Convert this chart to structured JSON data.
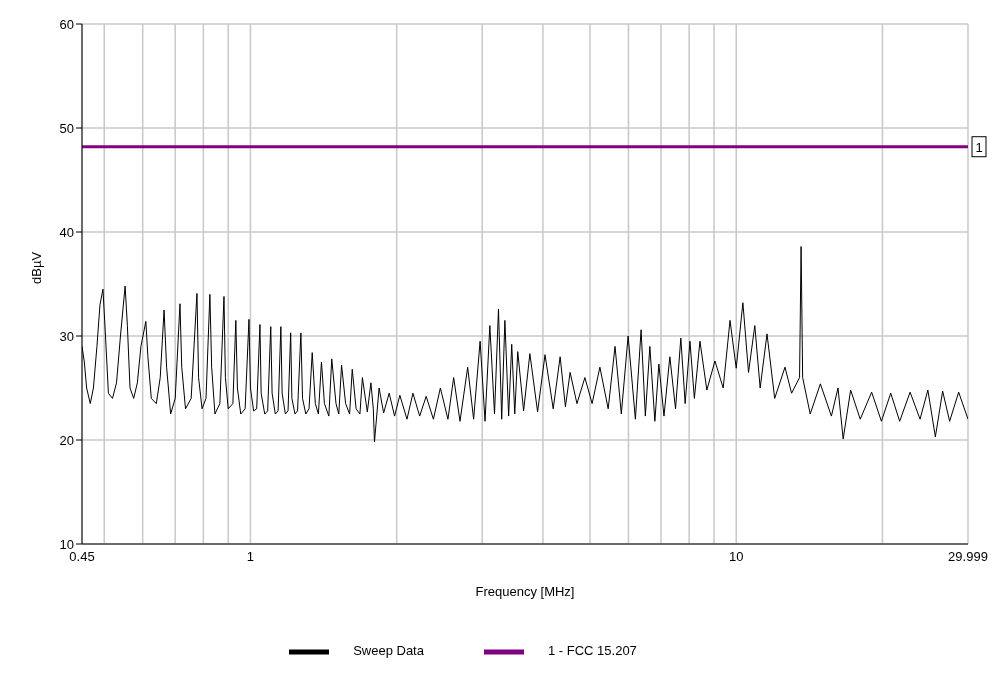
{
  "chart_data": {
    "type": "line",
    "xlabel": "Frequency [MHz]",
    "ylabel": "dBµV",
    "log": "x",
    "grid": true,
    "legend": "bottom",
    "marker": "none",
    "line_style": "solid",
    "xlim": [
      0.45,
      29.999
    ],
    "ylim": [
      10,
      60
    ],
    "xticks": [
      0.45,
      {
        "value": 0.5,
        "label": null
      },
      {
        "value": 0.6,
        "label": null
      },
      {
        "value": 0.7,
        "label": null
      },
      {
        "value": 0.8,
        "label": null
      },
      {
        "value": 0.9,
        "label": null
      },
      1,
      {
        "value": 2,
        "label": null
      },
      {
        "value": 3,
        "label": null
      },
      {
        "value": 4,
        "label": null
      },
      {
        "value": 5,
        "label": null
      },
      {
        "value": 6,
        "label": null
      },
      {
        "value": 7,
        "label": null
      },
      {
        "value": 8,
        "label": null
      },
      {
        "value": 9,
        "label": null
      },
      10,
      {
        "value": 20,
        "label": null
      },
      29.999
    ],
    "yticks": [
      10,
      20,
      30,
      40,
      50,
      60
    ],
    "series": [
      {
        "name": "Sweep Data",
        "color": "#000000",
        "x": [
          0.45,
          0.455,
          0.46,
          0.468,
          0.475,
          0.483,
          0.49,
          0.497,
          0.503,
          0.51,
          0.52,
          0.53,
          0.54,
          0.552,
          0.558,
          0.565,
          0.575,
          0.585,
          0.595,
          0.609,
          0.615,
          0.625,
          0.64,
          0.652,
          0.664,
          0.672,
          0.685,
          0.7,
          0.716,
          0.722,
          0.735,
          0.755,
          0.776,
          0.782,
          0.795,
          0.81,
          0.825,
          0.832,
          0.845,
          0.865,
          0.882,
          0.888,
          0.9,
          0.92,
          0.933,
          0.94,
          0.955,
          0.975,
          0.993,
          1.0,
          1.015,
          1.03,
          1.046,
          1.052,
          1.07,
          1.085,
          1.101,
          1.108,
          1.125,
          1.14,
          1.155,
          1.162,
          1.18,
          1.195,
          1.21,
          1.217,
          1.235,
          1.25,
          1.27,
          1.28,
          1.3,
          1.32,
          1.34,
          1.36,
          1.38,
          1.4,
          1.42,
          1.45,
          1.47,
          1.5,
          1.52,
          1.54,
          1.57,
          1.6,
          1.62,
          1.65,
          1.68,
          1.7,
          1.74,
          1.77,
          1.79,
          1.8,
          1.84,
          1.88,
          1.93,
          1.98,
          2.03,
          2.1,
          2.16,
          2.23,
          2.3,
          2.38,
          2.46,
          2.55,
          2.62,
          2.7,
          2.8,
          2.88,
          2.97,
          3.04,
          3.11,
          3.18,
          3.24,
          3.29,
          3.34,
          3.4,
          3.45,
          3.5,
          3.55,
          3.65,
          3.76,
          3.9,
          4.04,
          4.2,
          4.34,
          4.45,
          4.55,
          4.7,
          4.88,
          5.05,
          5.24,
          5.45,
          5.63,
          5.8,
          5.99,
          6.2,
          6.37,
          6.5,
          6.64,
          6.8,
          6.93,
          7.1,
          7.3,
          7.5,
          7.69,
          7.85,
          8.03,
          8.2,
          8.42,
          8.7,
          9.04,
          9.4,
          9.71,
          10.0,
          10.32,
          10.6,
          10.92,
          11.2,
          11.57,
          12.0,
          12.6,
          13.0,
          13.5,
          13.6,
          13.7,
          14.2,
          14.9,
          15.7,
          16.2,
          16.6,
          17.2,
          18.0,
          19.0,
          19.9,
          20.8,
          21.7,
          22.8,
          23.9,
          24.8,
          25.7,
          26.6,
          27.5,
          28.7,
          29.999
        ],
        "values": [
          29,
          27.5,
          25,
          23.5,
          25,
          29,
          33,
          34.5,
          30,
          24.5,
          24,
          25.5,
          30,
          34.8,
          31,
          25,
          24,
          25.5,
          29,
          31.4,
          28,
          24,
          23.5,
          26,
          32.5,
          27,
          22.5,
          24,
          33.1,
          27,
          23,
          24,
          34.1,
          26,
          23,
          24,
          34,
          27,
          22.5,
          23.5,
          33.8,
          26,
          23,
          23.5,
          31.5,
          25,
          22.5,
          23,
          31.6,
          25,
          22.8,
          23,
          31.1,
          24.5,
          22.5,
          22.8,
          30.9,
          24.5,
          22.5,
          22.8,
          30.9,
          24.5,
          22.5,
          22.8,
          30.3,
          24,
          22.5,
          22.8,
          30.3,
          24,
          22.5,
          23,
          28.4,
          23.5,
          22.5,
          27.5,
          23.5,
          22.3,
          27.8,
          23.5,
          22.5,
          27.2,
          23.5,
          22.5,
          26.8,
          23,
          22.5,
          26,
          22.7,
          25.5,
          23,
          19.8,
          25,
          22.6,
          24.5,
          22.3,
          24.3,
          22,
          24.5,
          22.3,
          24.2,
          22,
          25,
          22,
          26,
          21.8,
          27,
          22,
          29.5,
          21.8,
          31,
          22.5,
          32.6,
          22,
          31.5,
          22.3,
          29.2,
          22.5,
          28.5,
          22.8,
          28.3,
          22.7,
          28.2,
          23,
          28,
          23.2,
          26.5,
          23.5,
          26,
          23.5,
          27,
          23,
          29,
          22.5,
          30,
          22,
          30.6,
          22.3,
          29,
          21.8,
          27.3,
          22.3,
          28,
          23,
          29.8,
          23.5,
          29.5,
          24,
          29.5,
          24.8,
          27.6,
          25,
          31.5,
          26.9,
          33.2,
          26.5,
          31,
          25,
          30.2,
          24,
          27,
          24.5,
          26,
          38.6,
          26,
          22.5,
          25.4,
          22.3,
          25,
          20.1,
          24.8,
          22,
          24.6,
          21.8,
          24.5,
          21.8,
          24.6,
          22,
          24.8,
          20.3,
          24.7,
          21.8,
          24.6,
          22
        ]
      },
      {
        "name": "1 - FCC 15.207",
        "color": "#800080",
        "x": [
          0.45,
          29.999
        ],
        "values": [
          48.2,
          48.2
        ]
      }
    ],
    "annotations": [
      {
        "text": "1",
        "x": 29.999,
        "y": 48.2
      }
    ]
  }
}
